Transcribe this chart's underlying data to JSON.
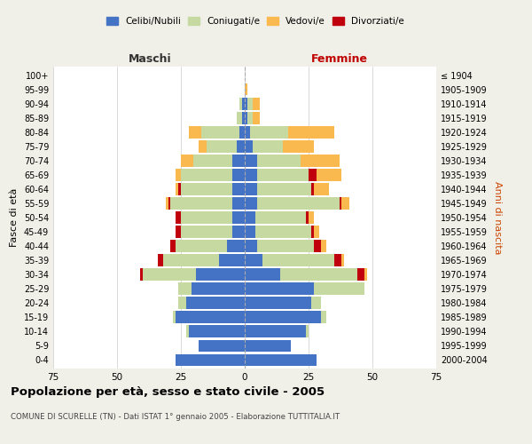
{
  "age_groups": [
    "0-4",
    "5-9",
    "10-14",
    "15-19",
    "20-24",
    "25-29",
    "30-34",
    "35-39",
    "40-44",
    "45-49",
    "50-54",
    "55-59",
    "60-64",
    "65-69",
    "70-74",
    "75-79",
    "80-84",
    "85-89",
    "90-94",
    "95-99",
    "100+"
  ],
  "birth_years": [
    "2000-2004",
    "1995-1999",
    "1990-1994",
    "1985-1989",
    "1980-1984",
    "1975-1979",
    "1970-1974",
    "1965-1969",
    "1960-1964",
    "1955-1959",
    "1950-1954",
    "1945-1949",
    "1940-1944",
    "1935-1939",
    "1930-1934",
    "1925-1929",
    "1920-1924",
    "1915-1919",
    "1910-1914",
    "1905-1909",
    "≤ 1904"
  ],
  "colors": {
    "celibi": "#4472C4",
    "coniugati": "#C5D9A0",
    "vedovi": "#F9B94E",
    "divorziati": "#C0000C"
  },
  "males": {
    "celibi": [
      27,
      18,
      22,
      27,
      23,
      21,
      19,
      10,
      7,
      5,
      5,
      5,
      5,
      5,
      5,
      3,
      2,
      1,
      1,
      0,
      0
    ],
    "coniugati": [
      0,
      0,
      1,
      1,
      3,
      5,
      21,
      22,
      20,
      20,
      20,
      24,
      20,
      20,
      15,
      12,
      15,
      2,
      1,
      0,
      0
    ],
    "vedovi": [
      0,
      0,
      0,
      0,
      0,
      0,
      0,
      0,
      0,
      0,
      0,
      1,
      1,
      2,
      5,
      3,
      5,
      0,
      0,
      0,
      0
    ],
    "divorziati": [
      0,
      0,
      0,
      0,
      0,
      0,
      1,
      2,
      2,
      2,
      2,
      1,
      1,
      0,
      0,
      0,
      0,
      0,
      0,
      0,
      0
    ]
  },
  "females": {
    "nubili": [
      28,
      18,
      24,
      30,
      26,
      27,
      14,
      7,
      5,
      4,
      4,
      5,
      5,
      5,
      5,
      3,
      2,
      1,
      1,
      0,
      0
    ],
    "coniugate": [
      0,
      0,
      1,
      2,
      4,
      20,
      30,
      28,
      22,
      22,
      20,
      32,
      21,
      20,
      17,
      12,
      15,
      2,
      2,
      0,
      0
    ],
    "vedove": [
      0,
      0,
      0,
      0,
      0,
      0,
      1,
      1,
      2,
      2,
      2,
      3,
      6,
      10,
      15,
      12,
      18,
      3,
      3,
      1,
      0
    ],
    "divorziate": [
      0,
      0,
      0,
      0,
      0,
      0,
      3,
      3,
      3,
      1,
      1,
      1,
      1,
      3,
      0,
      0,
      0,
      0,
      0,
      0,
      0
    ]
  },
  "title": "Popolazione per età, sesso e stato civile - 2005",
  "subtitle": "COMUNE DI SCURELLE (TN) - Dati ISTAT 1° gennaio 2005 - Elaborazione TUTTITALIA.IT",
  "xlabel_left": "Maschi",
  "xlabel_right": "Femmine",
  "ylabel_left": "Fasce di età",
  "ylabel_right": "Anni di nascita",
  "xlim": 75,
  "legend_labels": [
    "Celibi/Nubili",
    "Coniugati/e",
    "Vedovi/e",
    "Divorziati/e"
  ],
  "bg_color": "#F0F0E8",
  "plot_bg_color": "#FFFFFF"
}
